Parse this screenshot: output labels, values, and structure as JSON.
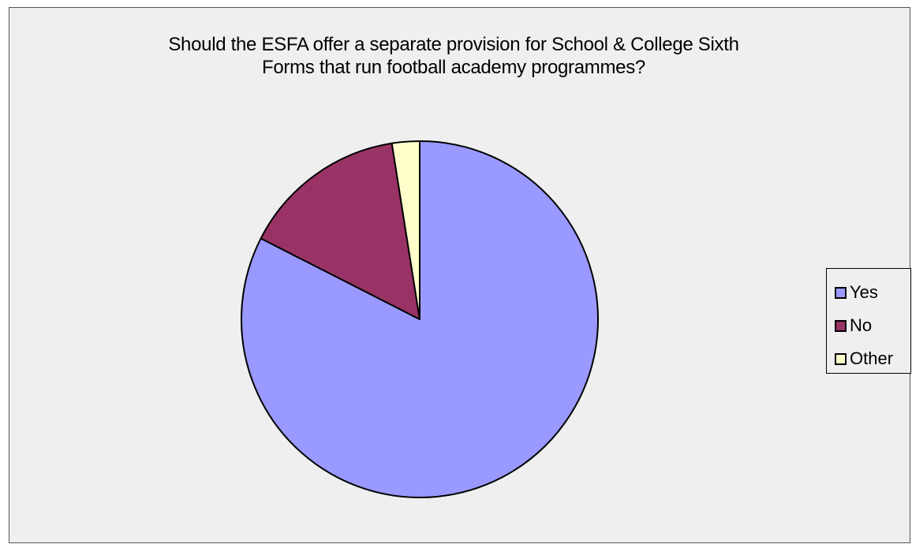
{
  "chart_data": {
    "type": "pie",
    "title": "Should the ESFA offer a separate provision for School & College Sixth Forms that run football academy programmes?",
    "title_lines": [
      "Should the ESFA offer a separate provision for School & College Sixth",
      "Forms that run football academy programmes?"
    ],
    "categories": [
      "Yes",
      "No",
      "Other"
    ],
    "values": [
      82.5,
      15.0,
      2.5
    ],
    "colors": [
      "#9999ff",
      "#993366",
      "#ffffcc"
    ],
    "start_angle": "12 o'clock",
    "direction": "clockwise",
    "legend": {
      "position": "right",
      "items": [
        "Yes",
        "No",
        "Other"
      ]
    },
    "background_color": "#efefef",
    "outline_color": "#000000"
  }
}
